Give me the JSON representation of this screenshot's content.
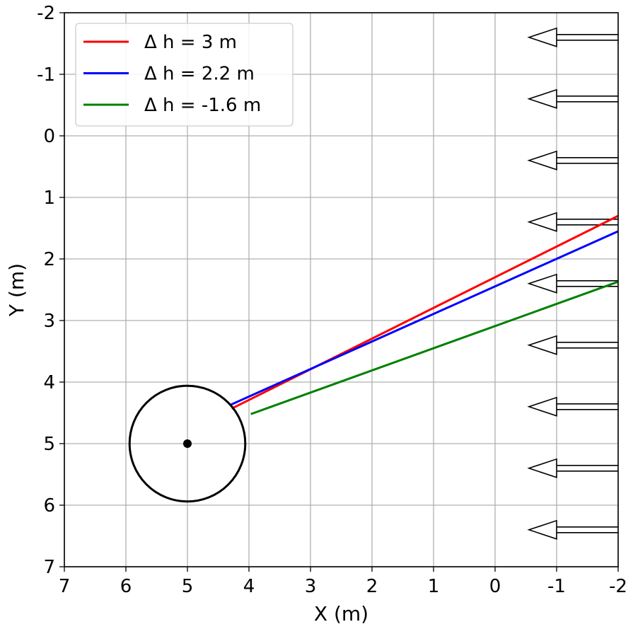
{
  "chart_data": {
    "type": "line",
    "xlabel": "X (m)",
    "ylabel": "Y (m)",
    "xlim": [
      7,
      -2
    ],
    "ylim": [
      7,
      -2
    ],
    "x_reversed": true,
    "y_reversed": true,
    "xticks": [
      "7",
      "6",
      "5",
      "4",
      "3",
      "2",
      "1",
      "0",
      "-1",
      "-2"
    ],
    "yticks": [
      "-2",
      "-1",
      "0",
      "1",
      "2",
      "3",
      "4",
      "5",
      "6",
      "7"
    ],
    "grid": true,
    "legend_position": "upper-left",
    "series": [
      {
        "name": "Δ h = 3 m",
        "color": "#ff0000",
        "x": [
          -2.0,
          4.28
        ],
        "y": [
          1.3,
          4.43
        ]
      },
      {
        "name": "Δ h = 2.2 m",
        "color": "#0000ff",
        "x": [
          -2.0,
          4.3
        ],
        "y": [
          1.55,
          4.37
        ]
      },
      {
        "name": "Δ h = -1.6 m",
        "color": "#008000",
        "x": [
          -2.0,
          3.97
        ],
        "y": [
          2.37,
          4.52
        ]
      }
    ],
    "circle": {
      "center_x": 5.0,
      "center_y": 5.0,
      "radius": 0.94,
      "color": "#000000"
    },
    "center_point": {
      "x": 5.0,
      "y": 5.0
    },
    "wind_arrows": {
      "color": "#000000",
      "direction": "toward +X",
      "x_start": -2.0,
      "x_tip": -0.55,
      "y": [
        -1.6,
        -0.6,
        0.4,
        1.4,
        2.4,
        3.4,
        4.4,
        5.4,
        6.4
      ]
    }
  }
}
